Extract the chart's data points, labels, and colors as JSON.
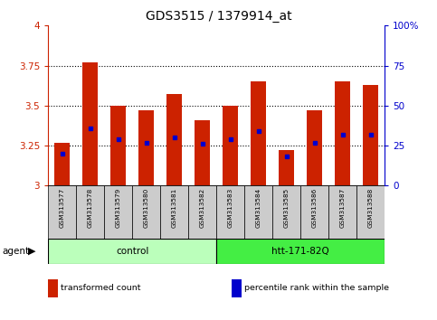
{
  "title": "GDS3515 / 1379914_at",
  "samples": [
    "GSM313577",
    "GSM313578",
    "GSM313579",
    "GSM313580",
    "GSM313581",
    "GSM313582",
    "GSM313583",
    "GSM313584",
    "GSM313585",
    "GSM313586",
    "GSM313587",
    "GSM313588"
  ],
  "red_values": [
    3.27,
    3.77,
    3.5,
    3.47,
    3.57,
    3.41,
    3.5,
    3.65,
    3.22,
    3.47,
    3.65,
    3.63
  ],
  "blue_values": [
    3.2,
    3.36,
    3.29,
    3.27,
    3.3,
    3.26,
    3.29,
    3.34,
    3.18,
    3.27,
    3.32,
    3.32
  ],
  "ylim_left": [
    3.0,
    4.0
  ],
  "ylim_right": [
    0,
    100
  ],
  "yticks_left": [
    3.0,
    3.25,
    3.5,
    3.75,
    4.0
  ],
  "yticks_right": [
    0,
    25,
    50,
    75,
    100
  ],
  "ytick_labels_left": [
    "3",
    "3.25",
    "3.5",
    "3.75",
    "4"
  ],
  "ytick_labels_right": [
    "0",
    "25",
    "50",
    "75",
    "100%"
  ],
  "groups": [
    {
      "label": "control",
      "color": "#bbffbb",
      "start": 0,
      "end": 6
    },
    {
      "label": "htt-171-82Q",
      "color": "#44ee44",
      "start": 6,
      "end": 12
    }
  ],
  "bar_color": "#cc2200",
  "marker_color": "#0000cc",
  "bar_width": 0.55,
  "left_tick_color": "#cc2200",
  "right_tick_color": "#0000cc",
  "agent_label": "agent",
  "legend": [
    {
      "color": "#cc2200",
      "label": "transformed count"
    },
    {
      "color": "#0000cc",
      "label": "percentile rank within the sample"
    }
  ]
}
